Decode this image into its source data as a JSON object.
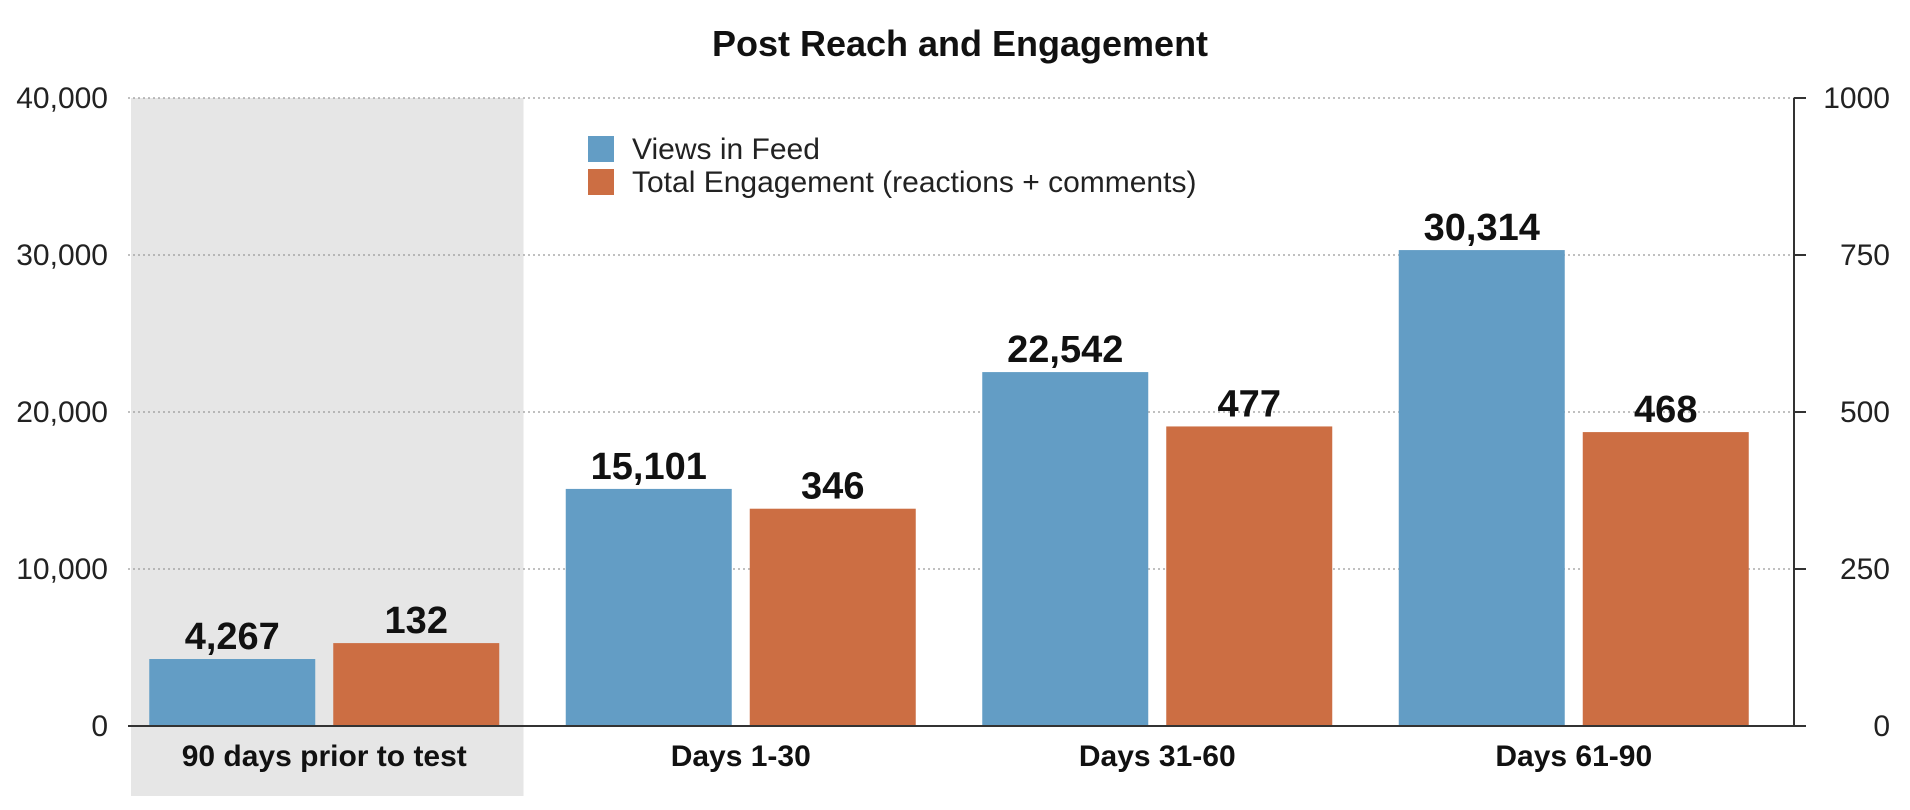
{
  "chart_data": {
    "type": "bar",
    "title": "Post Reach and Engagement",
    "categories": [
      "90 days prior to test",
      "Days 1-30",
      "Days 31-60",
      "Days 61-90"
    ],
    "highlighted_category": "90 days prior to test",
    "highlight_color": "#e6e6e6",
    "series": [
      {
        "name": "Views in Feed",
        "axis": "left",
        "color": "#639dc5",
        "values": [
          4267,
          15101,
          22542,
          30314
        ],
        "labels": [
          "4,267",
          "15,101",
          "22,542",
          "30,314"
        ]
      },
      {
        "name": "Total Engagement (reactions + comments)",
        "axis": "right",
        "color": "#cc6e43",
        "values": [
          132,
          346,
          477,
          468
        ],
        "labels": [
          "132",
          "346",
          "477",
          "468"
        ]
      }
    ],
    "y_left": {
      "range": [
        0,
        40000
      ],
      "ticks": [
        0,
        10000,
        20000,
        30000,
        40000
      ],
      "tick_labels": [
        "0",
        "10,000",
        "20,000",
        "30,000",
        "40,000"
      ]
    },
    "y_right": {
      "range": [
        0,
        1000
      ],
      "ticks": [
        0,
        250,
        500,
        750,
        1000
      ],
      "tick_labels": [
        "0",
        "250",
        "500",
        "750",
        "1000"
      ]
    },
    "grid": true,
    "legend_position": "top-center"
  }
}
